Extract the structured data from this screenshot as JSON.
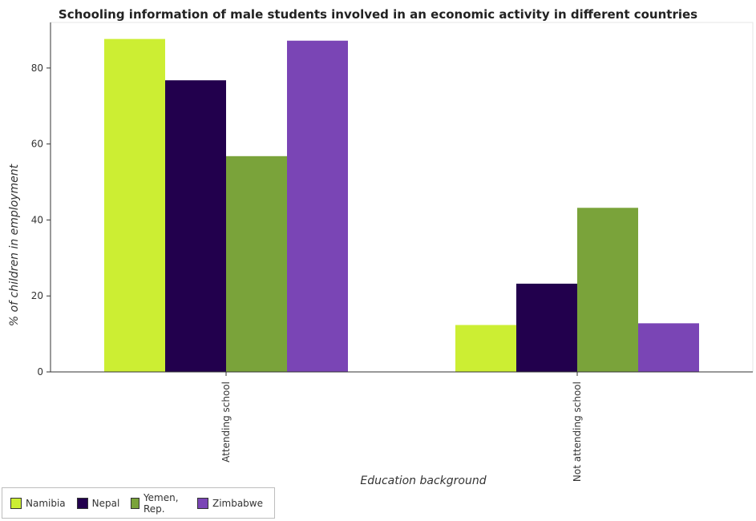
{
  "chart_data": {
    "type": "bar",
    "title": "Schooling information of male students involved in an economic activity in different countries",
    "xlabel": "Education background",
    "ylabel": "% of children in employment",
    "categories": [
      "Attending school",
      "Not attending school"
    ],
    "series": [
      {
        "name": "Namibia",
        "color": "#ccee33",
        "values": [
          87.65,
          12.35
        ]
      },
      {
        "name": "Nepal",
        "color": "#22004d",
        "values": [
          76.77,
          23.23
        ]
      },
      {
        "name": "Yemen, Rep.",
        "color": "#7aa33a",
        "values": [
          56.8,
          43.2
        ]
      },
      {
        "name": "Zimbabwe",
        "color": "#7a45b5",
        "values": [
          87.2,
          12.8
        ]
      }
    ],
    "ylim": [
      0,
      92
    ],
    "yticks": [
      0,
      20,
      40,
      60,
      80
    ],
    "grid": false,
    "legend_position": "bottom-left"
  }
}
